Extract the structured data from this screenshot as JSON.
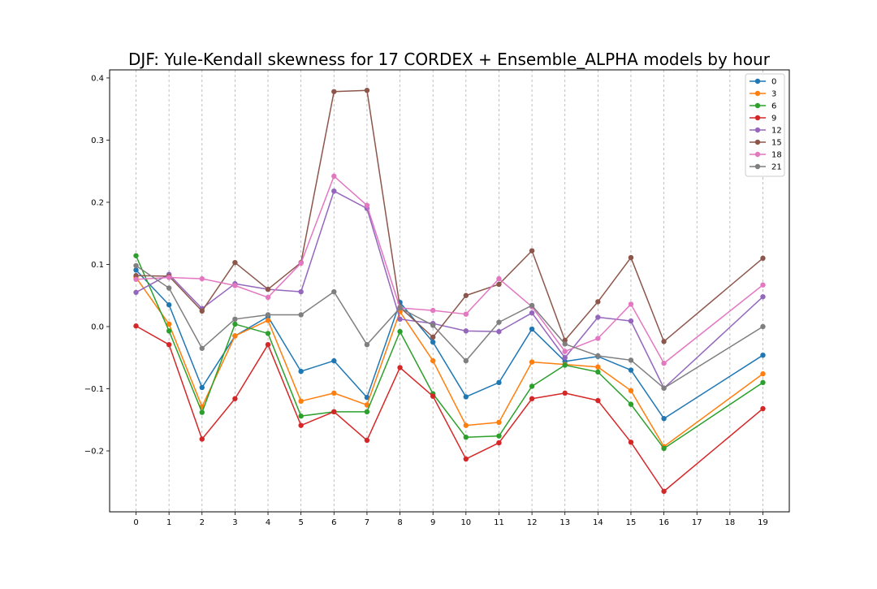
{
  "chart_data": {
    "type": "line",
    "title": "DJF: Yule-Kendall skewness for 17 CORDEX + Ensemble_ALPHA models by hour",
    "xlabel": "",
    "ylabel": "",
    "x_ticks": [
      "0",
      "1",
      "2",
      "3",
      "4",
      "5",
      "6",
      "7",
      "8",
      "9",
      "10",
      "11",
      "12",
      "13",
      "14",
      "15",
      "16",
      "17",
      "18",
      "19"
    ],
    "xlim": [
      -0.8,
      19.8
    ],
    "ylim": [
      -0.298,
      0.413
    ],
    "y_ticks": [
      {
        "value": -0.2,
        "label": "−0.2"
      },
      {
        "value": -0.1,
        "label": "−0.1"
      },
      {
        "value": 0.0,
        "label": "0.0"
      },
      {
        "value": 0.1,
        "label": "0.1"
      },
      {
        "value": 0.2,
        "label": "0.2"
      },
      {
        "value": 0.3,
        "label": "0.3"
      },
      {
        "value": 0.4,
        "label": "0.4"
      }
    ],
    "grid": "vertical dashed",
    "legend_position": "top-right",
    "x": [
      0,
      1,
      2,
      3,
      4,
      5,
      6,
      7,
      8,
      9,
      10,
      11,
      12,
      13,
      14,
      15,
      16,
      19
    ],
    "series": [
      {
        "name": "0",
        "color": "#1f77b4",
        "values": [
          0.091,
          0.035,
          -0.098,
          -0.015,
          0.016,
          -0.072,
          -0.055,
          -0.114,
          0.039,
          -0.025,
          -0.113,
          -0.09,
          -0.004,
          -0.056,
          -0.048,
          -0.07,
          -0.148,
          -0.046
        ]
      },
      {
        "name": "3",
        "color": "#ff7f0e",
        "values": [
          0.079,
          0.004,
          -0.129,
          -0.015,
          0.01,
          -0.12,
          -0.107,
          -0.126,
          0.024,
          -0.055,
          -0.159,
          -0.154,
          -0.057,
          -0.061,
          -0.065,
          -0.103,
          -0.193,
          -0.076
        ]
      },
      {
        "name": "6",
        "color": "#2ca02c",
        "values": [
          0.114,
          -0.007,
          -0.138,
          0.004,
          -0.011,
          -0.144,
          -0.137,
          -0.137,
          -0.008,
          -0.108,
          -0.178,
          -0.176,
          -0.096,
          -0.062,
          -0.073,
          -0.125,
          -0.196,
          -0.09
        ]
      },
      {
        "name": "9",
        "color": "#d62728",
        "values": [
          0.001,
          -0.029,
          -0.181,
          -0.116,
          -0.029,
          -0.159,
          -0.137,
          -0.183,
          -0.066,
          -0.112,
          -0.213,
          -0.187,
          -0.116,
          -0.107,
          -0.119,
          -0.186,
          -0.265,
          -0.132
        ]
      },
      {
        "name": "12",
        "color": "#9467bd",
        "values": [
          0.055,
          0.084,
          0.029,
          0.069,
          0.06,
          0.056,
          0.218,
          0.19,
          0.012,
          0.005,
          -0.007,
          -0.008,
          0.022,
          -0.05,
          0.015,
          0.009,
          -0.099,
          0.048
        ]
      },
      {
        "name": "15",
        "color": "#8c564b",
        "values": [
          0.082,
          0.081,
          0.025,
          0.103,
          0.06,
          0.103,
          0.378,
          0.38,
          0.031,
          -0.017,
          0.05,
          0.068,
          0.122,
          -0.022,
          0.04,
          0.111,
          -0.024,
          0.11
        ]
      },
      {
        "name": "18",
        "color": "#e377c2",
        "values": [
          0.076,
          0.079,
          0.077,
          0.066,
          0.047,
          0.102,
          0.242,
          0.195,
          0.03,
          0.026,
          0.02,
          0.077,
          0.032,
          -0.04,
          -0.019,
          0.036,
          -0.059,
          0.067
        ]
      },
      {
        "name": "21",
        "color": "#7f7f7f",
        "values": [
          0.098,
          0.062,
          -0.035,
          0.012,
          0.019,
          0.019,
          0.056,
          -0.029,
          0.03,
          0.002,
          -0.055,
          0.007,
          0.034,
          -0.028,
          -0.047,
          -0.054,
          -0.099,
          0.0
        ]
      }
    ]
  }
}
